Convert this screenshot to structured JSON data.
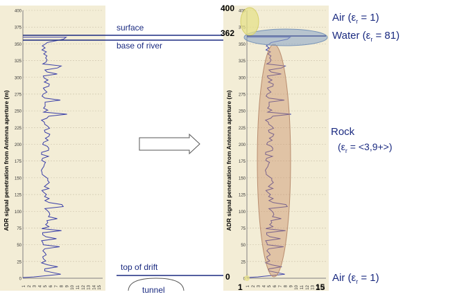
{
  "left_chart": {
    "ylabel": "ADR signal penetration from Antenna aperture (m)",
    "y_ticks": [
      "0",
      "25",
      "50",
      "75",
      "100",
      "125",
      "150",
      "175",
      "200",
      "225",
      "250",
      "275",
      "300",
      "325",
      "350",
      "375",
      "400"
    ],
    "x_ticks": [
      "1",
      "2",
      "3",
      "4",
      "5",
      "6",
      "7",
      "8",
      "9",
      "10",
      "11",
      "12",
      "13",
      "14",
      "15"
    ]
  },
  "right_chart": {
    "ylabel": "ADR signal penetration from Antenna aperture (m)",
    "y_ticks": [
      "0",
      "25",
      "50",
      "75",
      "100",
      "125",
      "150",
      "175",
      "200",
      "225",
      "250",
      "275",
      "300",
      "325",
      "350",
      "375",
      "400"
    ],
    "x_ticks": [
      "1",
      "2",
      "3",
      "4",
      "5",
      "6",
      "7",
      "8",
      "9",
      "10",
      "11",
      "12",
      "13",
      "14",
      "15"
    ]
  },
  "middle": {
    "surface_label": "surface",
    "base_label": "base of river",
    "drift_label": "top of drift",
    "tunnel_label": "tunnel"
  },
  "annotations": {
    "v400": "400",
    "v362": "362",
    "v0": "0",
    "x1": "1",
    "x15": "15",
    "air_top": "Air (εr = 1)",
    "water": "Water (εr = 81)",
    "rock_title": "Rock",
    "rock_eps": "(εr = <3,9+>)",
    "air_bottom": "Air (εr = 1)"
  },
  "colors": {
    "chart_bg": "#f3edd6",
    "trace": "#3a3fa8",
    "label_blue": "#1a2a80",
    "water_ellipse": "#8fa9c8",
    "rock_ellipse": "#c9906b",
    "air_ellipse": "#e6e08a"
  }
}
